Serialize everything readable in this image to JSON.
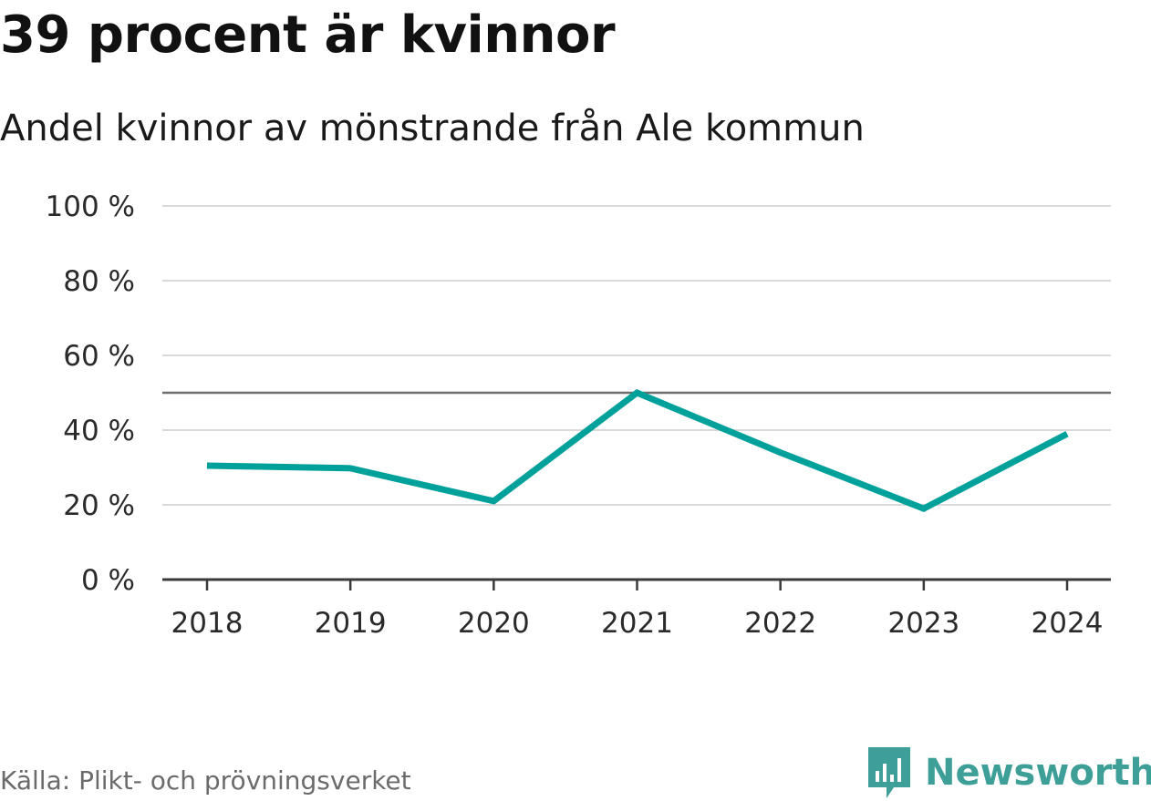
{
  "title": "39 procent är kvinnor",
  "subtitle": "Andel kvinnor av mönstrande från Ale kommun",
  "source": "Källa: Plikt- och prövningsverket",
  "brand": {
    "name": "Newsworthy",
    "logo_icon": "newsworthy-bar-chart-icon",
    "color": "#3d9f97"
  },
  "chart_data": {
    "type": "line",
    "x": [
      "2018",
      "2019",
      "2020",
      "2021",
      "2022",
      "2023",
      "2024"
    ],
    "series": [
      {
        "values": [
          30.5,
          29.8,
          21,
          50,
          34,
          19,
          39
        ],
        "color": "#00a19a"
      }
    ],
    "reference_line": 50,
    "ylim": [
      0,
      100
    ],
    "yticks": [
      0,
      20,
      40,
      60,
      80,
      100
    ],
    "ytick_labels": [
      "0 %",
      "20 %",
      "40 %",
      "60 %",
      "80 %",
      "100 %"
    ],
    "grid": true,
    "legend": "none"
  }
}
